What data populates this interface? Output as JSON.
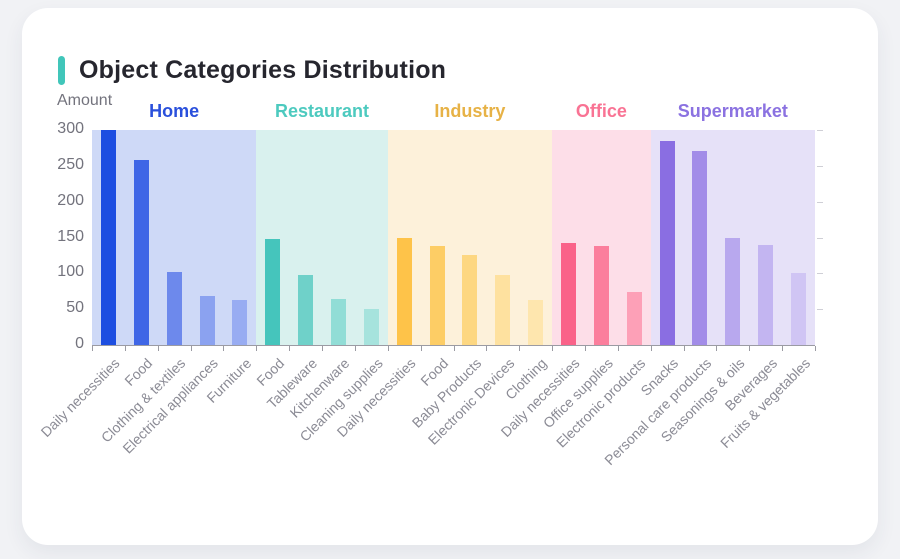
{
  "page": {
    "background_color": "#f1f2f5",
    "card_color": "#ffffff"
  },
  "header": {
    "title": "Object Categories Distribution",
    "accent_color": "#41c6ba"
  },
  "chart_data": {
    "type": "bar",
    "title": "Object Categories Distribution",
    "ylabel": "Amount",
    "xlabel": "",
    "ylim": [
      0,
      300
    ],
    "yticks": [
      0,
      50,
      100,
      150,
      200,
      250,
      300
    ],
    "grid": false,
    "legend_position": "grouped-headers-above-bands",
    "axis_color": "#9b9ba3",
    "ytick_label_color": "#73737d",
    "xtick_label_color": "#8b8b95",
    "xtick_label_rotation_deg": 45,
    "groups": [
      {
        "name": "Home",
        "label_color": "#2a50dc",
        "band_color": "#ced9f7",
        "bar_colors": [
          "#1d4ee1",
          "#3f66e6",
          "#6d89ec",
          "#8ba2f0",
          "#98acf2"
        ],
        "categories": [
          "Daily necessities",
          "Food",
          "Clothing & textiles",
          "Electrical appliances",
          "Furniture"
        ],
        "values": [
          300,
          258,
          102,
          68,
          63
        ]
      },
      {
        "name": "Restaurant",
        "label_color": "#4dcabf",
        "band_color": "#d9f1ee",
        "bar_colors": [
          "#45c5bc",
          "#6fd1c9",
          "#91ddd6",
          "#a6e3dd"
        ],
        "categories": [
          "Food",
          "Tableware",
          "Kitchenware",
          "Cleaning supplies"
        ],
        "values": [
          148,
          97,
          64,
          50
        ]
      },
      {
        "name": "Industry",
        "label_color": "#e7b246",
        "band_color": "#fdf1da",
        "bar_colors": [
          "#fec349",
          "#fdcd65",
          "#fdd781",
          "#fee19f",
          "#fee6ae"
        ],
        "categories": [
          "Daily necessities",
          "Food",
          "Baby Products",
          "Electronic Devices",
          "Clothing"
        ],
        "values": [
          150,
          138,
          126,
          98,
          63
        ]
      },
      {
        "name": "Office",
        "label_color": "#f97394",
        "band_color": "#fddee8",
        "bar_colors": [
          "#fa6289",
          "#fb7e9c",
          "#fda0b7"
        ],
        "categories": [
          "Daily necessities",
          "Office supplies",
          "Electronic products"
        ],
        "values": [
          142,
          138,
          74
        ]
      },
      {
        "name": "Supermarket",
        "label_color": "#8b72e1",
        "band_color": "#e6e1f8",
        "bar_colors": [
          "#8a6ee2",
          "#a28ce8",
          "#b8a8ee",
          "#c3b5f1",
          "#d0c5f4"
        ],
        "categories": [
          "Snacks",
          "Personal care products",
          "Seasonings & oils",
          "Beverages",
          "Fruits & vegetables"
        ],
        "values": [
          285,
          271,
          149,
          140,
          100
        ]
      }
    ]
  }
}
